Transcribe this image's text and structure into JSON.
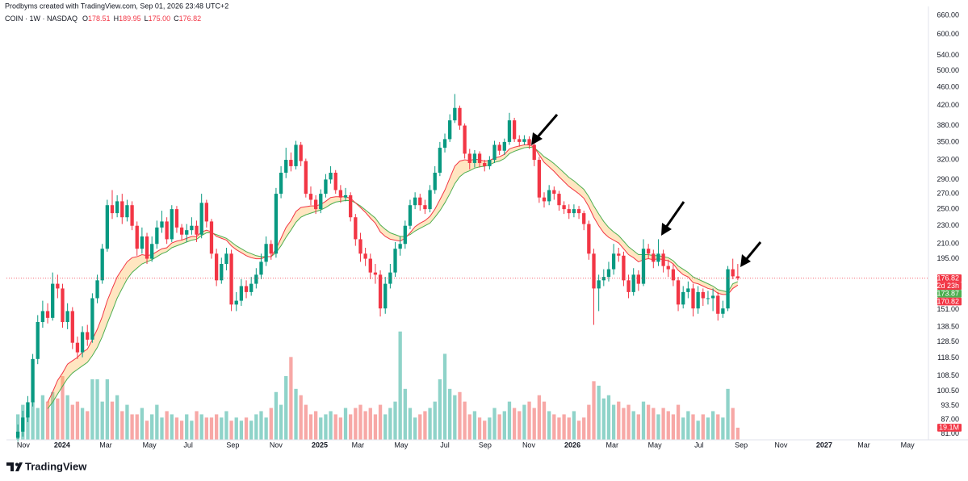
{
  "chart_data": {
    "type": "candlestick",
    "timestamp": "Prodbyms created with TradingView.com, Sep 01, 2026 23:48 UTC+2",
    "symbol": "COIN · 1W · NASDAQ",
    "ohlc_letters": [
      "O",
      "H",
      "L",
      "C"
    ],
    "ohlc_labels": [
      "178.51",
      "189.95",
      "175.00",
      "176.82"
    ],
    "countdown": "2d 23h",
    "footer": "TradingView",
    "log_scale": true,
    "grid": false,
    "up_color": "#089981",
    "down_color": "#f23645",
    "xlim": [
      -2.3,
      183.4
    ],
    "ylim": [
      78.7,
      690
    ],
    "xticks": [
      {
        "value": 1.1,
        "label": "Nov"
      },
      {
        "value": 8.9,
        "label": "2024"
      },
      {
        "value": 17.7,
        "label": "Mar"
      },
      {
        "value": 26.5,
        "label": "May"
      },
      {
        "value": 34.3,
        "label": "Jul"
      },
      {
        "value": 43.3,
        "label": "Sep"
      },
      {
        "value": 52.0,
        "label": "Nov"
      },
      {
        "value": 60.8,
        "label": "2025"
      },
      {
        "value": 68.5,
        "label": "Mar"
      },
      {
        "value": 77.2,
        "label": "May"
      },
      {
        "value": 86.0,
        "label": "Jul"
      },
      {
        "value": 94.1,
        "label": "Sep"
      },
      {
        "value": 102.9,
        "label": "Nov"
      },
      {
        "value": 111.7,
        "label": "2026"
      },
      {
        "value": 119.7,
        "label": "Mar"
      },
      {
        "value": 128.3,
        "label": "May"
      },
      {
        "value": 137.2,
        "label": "Jul"
      },
      {
        "value": 145.7,
        "label": "Sep"
      },
      {
        "value": 153.7,
        "label": "Nov"
      },
      {
        "value": 162.4,
        "label": "2027"
      },
      {
        "value": 170.4,
        "label": "Mar"
      },
      {
        "value": 179.2,
        "label": "May"
      }
    ],
    "yticks": [
      {
        "value": 81,
        "label": "81.00"
      },
      {
        "value": 87,
        "label": "87.00"
      },
      {
        "value": 93.5,
        "label": "93.50"
      },
      {
        "value": 100.5,
        "label": "100.50"
      },
      {
        "value": 108.5,
        "label": "108.50"
      },
      {
        "value": 118.5,
        "label": "118.50"
      },
      {
        "value": 128.5,
        "label": "128.50"
      },
      {
        "value": 138.5,
        "label": "138.50"
      },
      {
        "value": 151,
        "label": "151.00"
      },
      {
        "value": 195,
        "label": "195.00"
      },
      {
        "value": 210,
        "label": "210.00"
      },
      {
        "value": 230,
        "label": "230.00"
      },
      {
        "value": 250,
        "label": "250.00"
      },
      {
        "value": 270,
        "label": "270.00"
      },
      {
        "value": 290,
        "label": "290.00"
      },
      {
        "value": 320,
        "label": "320.00"
      },
      {
        "value": 350,
        "label": "350.00"
      },
      {
        "value": 380,
        "label": "380.00"
      },
      {
        "value": 420,
        "label": "420.00"
      },
      {
        "value": 460,
        "label": "460.00"
      },
      {
        "value": 500,
        "label": "500.00"
      },
      {
        "value": 540,
        "label": "540.00"
      },
      {
        "value": 600,
        "label": "600.00"
      },
      {
        "value": 660,
        "label": "660.00"
      }
    ],
    "open": [
      79.5,
      82,
      88,
      95,
      118,
      142,
      150,
      145,
      172,
      168,
      142,
      150,
      128,
      122,
      135,
      130,
      160,
      175,
      205,
      255,
      245,
      260,
      240,
      255,
      230,
      205,
      218,
      195,
      210,
      228,
      235,
      215,
      250,
      228,
      220,
      225,
      230,
      220,
      258,
      235,
      200,
      175,
      190,
      200,
      155,
      158,
      170,
      165,
      172,
      180,
      192,
      210,
      200,
      270,
      300,
      320,
      310,
      345,
      318,
      270,
      262,
      250,
      270,
      290,
      300,
      275,
      265,
      268,
      240,
      215,
      200,
      195,
      182,
      180,
      152,
      172,
      182,
      205,
      210,
      230,
      255,
      265,
      255,
      250,
      275,
      300,
      340,
      355,
      390,
      415,
      380,
      330,
      315,
      330,
      315,
      310,
      320,
      345,
      335,
      350,
      390,
      355,
      350,
      355,
      345,
      320,
      265,
      260,
      275,
      270,
      255,
      250,
      245,
      250,
      245,
      232,
      200,
      168,
      175,
      178,
      185,
      200,
      198,
      175,
      165,
      180,
      172,
      205,
      200,
      192,
      200,
      188,
      185,
      175,
      155,
      165,
      168,
      152,
      165,
      160,
      160,
      162,
      148,
      152,
      185,
      178.51
    ],
    "high": [
      85,
      91,
      98,
      121,
      147,
      158,
      156,
      182,
      180,
      172,
      156,
      153,
      132,
      139,
      140,
      164,
      180,
      210,
      262,
      275,
      268,
      270,
      262,
      260,
      235,
      228,
      222,
      218,
      236,
      248,
      240,
      255,
      254,
      232,
      232,
      240,
      236,
      270,
      262,
      238,
      205,
      196,
      206,
      204,
      165,
      176,
      175,
      178,
      186,
      200,
      218,
      214,
      278,
      310,
      340,
      332,
      352,
      350,
      322,
      280,
      268,
      276,
      298,
      310,
      304,
      282,
      278,
      272,
      244,
      222,
      206,
      200,
      190,
      184,
      178,
      190,
      212,
      218,
      236,
      262,
      272,
      270,
      262,
      282,
      310,
      350,
      365,
      402,
      445,
      420,
      384,
      338,
      336,
      334,
      320,
      326,
      352,
      350,
      356,
      405,
      395,
      362,
      362,
      360,
      350,
      325,
      272,
      282,
      280,
      274,
      260,
      256,
      256,
      254,
      248,
      236,
      205,
      180,
      185,
      192,
      210,
      206,
      202,
      180,
      186,
      184,
      215,
      210,
      204,
      215,
      204,
      194,
      190,
      178,
      170,
      174,
      172,
      170,
      168,
      166,
      168,
      165,
      158,
      188,
      195,
      189.95
    ],
    "low": [
      78,
      80,
      86,
      93,
      115,
      138,
      141,
      143,
      160,
      138,
      137,
      124,
      118,
      119,
      126,
      128,
      156,
      172,
      202,
      238,
      240,
      232,
      235,
      225,
      198,
      200,
      190,
      192,
      205,
      222,
      210,
      212,
      222,
      214,
      212,
      220,
      212,
      216,
      228,
      195,
      170,
      172,
      184,
      150,
      150,
      154,
      160,
      162,
      168,
      176,
      188,
      194,
      196,
      264,
      292,
      302,
      305,
      310,
      265,
      255,
      244,
      245,
      265,
      284,
      270,
      258,
      260,
      235,
      208,
      192,
      188,
      176,
      172,
      146,
      148,
      168,
      178,
      198,
      205,
      226,
      250,
      248,
      244,
      246,
      270,
      295,
      332,
      350,
      385,
      372,
      322,
      305,
      308,
      308,
      302,
      305,
      315,
      328,
      328,
      345,
      350,
      342,
      345,
      338,
      310,
      258,
      252,
      255,
      262,
      248,
      244,
      238,
      240,
      238,
      225,
      194,
      140,
      150,
      170,
      174,
      180,
      192,
      170,
      160,
      162,
      166,
      170,
      195,
      186,
      188,
      182,
      178,
      170,
      150,
      152,
      160,
      146,
      148,
      154,
      155,
      150,
      143,
      145,
      150,
      176,
      175
    ],
    "close": [
      82,
      88,
      95,
      118,
      142,
      150,
      145,
      172,
      168,
      142,
      150,
      128,
      122,
      135,
      130,
      160,
      175,
      205,
      255,
      245,
      260,
      240,
      255,
      230,
      205,
      218,
      195,
      210,
      228,
      235,
      215,
      250,
      228,
      220,
      225,
      230,
      220,
      258,
      235,
      200,
      175,
      190,
      200,
      155,
      158,
      170,
      165,
      172,
      180,
      192,
      210,
      200,
      270,
      300,
      320,
      310,
      345,
      318,
      270,
      262,
      250,
      270,
      290,
      300,
      275,
      265,
      268,
      240,
      215,
      200,
      195,
      182,
      180,
      152,
      172,
      182,
      205,
      210,
      230,
      255,
      265,
      255,
      250,
      275,
      300,
      340,
      355,
      390,
      415,
      380,
      330,
      315,
      330,
      315,
      310,
      320,
      345,
      335,
      350,
      390,
      355,
      350,
      355,
      345,
      320,
      265,
      260,
      275,
      270,
      255,
      250,
      245,
      250,
      245,
      232,
      200,
      168,
      175,
      178,
      185,
      200,
      198,
      175,
      165,
      180,
      172,
      205,
      200,
      192,
      200,
      188,
      185,
      175,
      155,
      165,
      168,
      152,
      165,
      160,
      160,
      162,
      148,
      152,
      185,
      178.51,
      176.82
    ],
    "volume": {
      "ylim": [
        0,
        680
      ],
      "up_color": "#8fd3c9",
      "down_color": "#f7a8a6",
      "last_label": "19.1M",
      "values": [
        40,
        55,
        45,
        60,
        50,
        70,
        60,
        75,
        65,
        100,
        70,
        55,
        60,
        50,
        45,
        95,
        95,
        60,
        95,
        60,
        70,
        45,
        55,
        40,
        40,
        50,
        30,
        40,
        55,
        35,
        45,
        40,
        35,
        30,
        40,
        30,
        45,
        40,
        35,
        35,
        40,
        35,
        45,
        30,
        35,
        30,
        35,
        30,
        40,
        45,
        35,
        50,
        75,
        55,
        100,
        130,
        80,
        70,
        55,
        40,
        45,
        35,
        40,
        45,
        40,
        35,
        50,
        40,
        50,
        55,
        45,
        50,
        40,
        55,
        40,
        50,
        60,
        170,
        80,
        50,
        35,
        40,
        45,
        50,
        60,
        95,
        135,
        80,
        70,
        75,
        60,
        40,
        45,
        35,
        30,
        35,
        50,
        40,
        45,
        60,
        50,
        45,
        55,
        60,
        50,
        70,
        60,
        45,
        40,
        35,
        40,
        35,
        45,
        30,
        35,
        55,
        92,
        85,
        65,
        70,
        55,
        60,
        50,
        55,
        45,
        40,
        60,
        55,
        50,
        40,
        50,
        45,
        40,
        55,
        35,
        45,
        40,
        30,
        40,
        35,
        45,
        40,
        35,
        80,
        50,
        19.1
      ]
    },
    "series": [
      {
        "color": "#4caf50",
        "values": [
          null,
          null,
          null,
          null,
          null,
          null,
          92,
          95,
          99,
          103,
          107,
          110,
          112,
          114,
          116,
          120,
          125,
          132,
          141,
          150,
          160,
          168,
          176,
          182,
          186,
          190,
          192,
          194,
          197,
          200,
          202,
          206,
          208,
          210,
          212,
          214,
          215,
          219,
          222,
          222,
          220,
          218,
          216,
          212,
          208,
          205,
          202,
          200,
          198,
          197,
          197,
          197,
          201,
          208,
          217,
          225,
          234,
          240,
          243,
          245,
          247,
          249,
          252,
          256,
          259,
          260,
          261,
          261,
          258,
          254,
          249,
          244,
          239,
          231,
          226,
          222,
          220,
          218,
          218,
          220,
          224,
          227,
          230,
          233,
          240,
          248,
          258,
          270,
          284,
          294,
          300,
          303,
          307,
          309,
          310,
          312,
          316,
          318,
          322,
          330,
          334,
          337,
          340,
          341,
          340,
          333,
          325,
          320,
          314,
          307,
          300,
          293,
          288,
          282,
          276,
          266,
          254,
          244,
          235,
          228,
          223,
          219,
          213,
          207,
          203,
          199,
          199,
          199,
          198,
          198,
          197,
          196,
          193,
          188,
          185,
          182,
          178,
          176,
          174,
          172,
          170,
          167,
          166,
          165,
          172,
          173.87
        ]
      },
      {
        "color": "#f23645",
        "values": [
          null,
          null,
          null,
          null,
          null,
          null,
          95,
          100,
          106,
          110,
          115,
          117,
          119,
          122,
          124,
          130,
          137,
          146,
          158,
          168,
          178,
          185,
          192,
          196,
          197,
          199,
          198,
          199,
          202,
          205,
          206,
          211,
          213,
          214,
          216,
          218,
          218,
          223,
          225,
          223,
          218,
          216,
          214,
          208,
          204,
          201,
          198,
          196,
          195,
          195,
          197,
          197,
          205,
          216,
          228,
          236,
          247,
          252,
          253,
          254,
          254,
          256,
          260,
          265,
          266,
          266,
          266,
          264,
          258,
          252,
          246,
          239,
          233,
          223,
          218,
          215,
          214,
          213,
          216,
          222,
          229,
          233,
          236,
          241,
          250,
          262,
          275,
          292,
          310,
          318,
          320,
          319,
          321,
          320,
          318,
          319,
          323,
          325,
          329,
          338,
          341,
          343,
          345,
          345,
          341,
          328,
          316,
          309,
          302,
          294,
          287,
          280,
          275,
          270,
          264,
          253,
          240,
          230,
          222,
          217,
          214,
          211,
          205,
          199,
          196,
          192,
          194,
          195,
          194,
          195,
          194,
          193,
          190,
          184,
          180,
          178,
          173,
          172,
          170,
          168,
          167,
          164,
          163,
          163,
          168,
          170.82
        ]
      }
    ]
  }
}
